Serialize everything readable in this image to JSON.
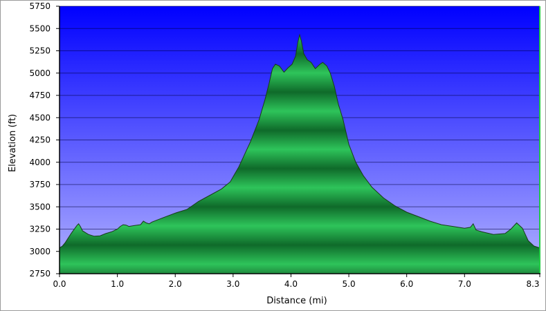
{
  "chart_data": {
    "type": "area",
    "title": "",
    "xlabel": "Distance    (mi)",
    "ylabel": "Elevation (ft)",
    "xlim": [
      0,
      8.3
    ],
    "ylim": [
      2750,
      5750
    ],
    "x_ticks": [
      0.0,
      1.0,
      2.0,
      3.0,
      4.0,
      5.0,
      6.0,
      7.0,
      8.3
    ],
    "x_tick_labels": [
      "0.0",
      "1.0",
      "2.0",
      "3.0",
      "4.0",
      "5.0",
      "6.0",
      "7.0",
      "8.3"
    ],
    "y_ticks": [
      2750,
      3000,
      3250,
      3500,
      3750,
      4000,
      4250,
      4500,
      4750,
      5000,
      5250,
      5500,
      5750
    ],
    "y_tick_labels": [
      "2750",
      "3000",
      "3250",
      "3500",
      "3750",
      "4000",
      "4250",
      "4500",
      "4750",
      "5000",
      "5250",
      "5500",
      "5750"
    ],
    "grid": true,
    "legend": "none",
    "colors": {
      "background_top": "#0000ff",
      "background_bottom": "#b4b4ff",
      "fill_light": "#2ec45a",
      "fill_dark": "#0f6a2a",
      "outline": "#1a3a1a",
      "right_edge": "#22cc44"
    },
    "series": [
      {
        "x": [
          0.0,
          0.05,
          0.1,
          0.2,
          0.3,
          0.33,
          0.36,
          0.4,
          0.5,
          0.6,
          0.7,
          0.8,
          0.9,
          1.0,
          1.05,
          1.1,
          1.15,
          1.2,
          1.3,
          1.4,
          1.45,
          1.5,
          1.55,
          1.6,
          1.8,
          2.0,
          2.2,
          2.4,
          2.6,
          2.8,
          2.95,
          3.1,
          3.3,
          3.45,
          3.55,
          3.62,
          3.68,
          3.73,
          3.8,
          3.88,
          3.95,
          4.02,
          4.08,
          4.12,
          4.15,
          4.18,
          4.22,
          4.28,
          4.35,
          4.42,
          4.5,
          4.55,
          4.62,
          4.68,
          4.75,
          4.82,
          4.9,
          5.0,
          5.12,
          5.25,
          5.4,
          5.6,
          5.8,
          6.0,
          6.2,
          6.4,
          6.6,
          6.8,
          7.0,
          7.1,
          7.15,
          7.2,
          7.3,
          7.5,
          7.7,
          7.8,
          7.9,
          8.0,
          8.05,
          8.1,
          8.2,
          8.25,
          8.3
        ],
        "values": [
          3040,
          3060,
          3100,
          3200,
          3290,
          3310,
          3280,
          3230,
          3190,
          3170,
          3175,
          3200,
          3220,
          3250,
          3280,
          3300,
          3295,
          3280,
          3290,
          3300,
          3340,
          3320,
          3310,
          3330,
          3380,
          3430,
          3470,
          3560,
          3630,
          3700,
          3780,
          3950,
          4230,
          4480,
          4700,
          4880,
          5050,
          5100,
          5080,
          5010,
          5060,
          5100,
          5190,
          5350,
          5430,
          5360,
          5220,
          5150,
          5120,
          5050,
          5100,
          5120,
          5080,
          5000,
          4850,
          4650,
          4480,
          4200,
          4000,
          3850,
          3720,
          3600,
          3510,
          3440,
          3390,
          3340,
          3300,
          3280,
          3260,
          3270,
          3310,
          3240,
          3220,
          3190,
          3200,
          3250,
          3320,
          3260,
          3190,
          3120,
          3060,
          3050,
          3040
        ]
      }
    ]
  }
}
